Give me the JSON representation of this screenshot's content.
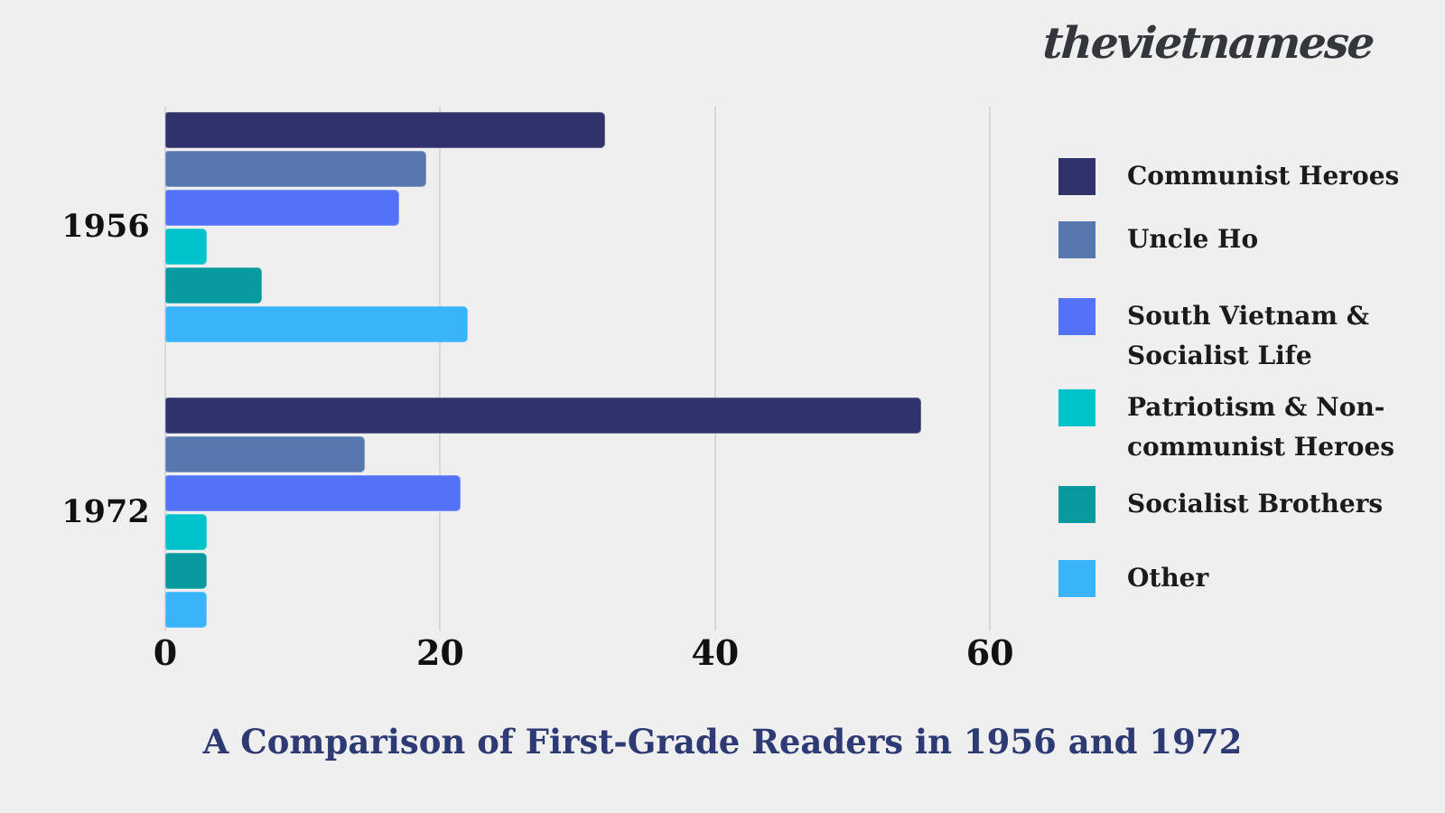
{
  "page": {
    "background": "#EFEFF0"
  },
  "header": {
    "logo_text": "thevietnamese",
    "logo_color": "#33363C"
  },
  "chart_data": {
    "type": "bar",
    "orientation": "horizontal",
    "title": "A Comparison of First-Grade Readers in 1956 and 1972",
    "title_color": "#2D3A73",
    "categories": [
      "1956",
      "1972"
    ],
    "series": [
      {
        "name": "Communist Heroes",
        "color": "#30336B",
        "values": [
          32,
          55
        ]
      },
      {
        "name": "Uncle Ho",
        "color": "#5777AE",
        "values": [
          19,
          14.5
        ]
      },
      {
        "name": "South Vietnam & Socialist Life",
        "color": "#5472F8",
        "values": [
          17,
          21.5
        ]
      },
      {
        "name": "Patriotism & Non-communist Heroes",
        "color": "#00C2CB",
        "values": [
          3,
          3
        ]
      },
      {
        "name": "Socialist Brothers",
        "color": "#089A9E",
        "values": [
          7,
          3
        ]
      },
      {
        "name": "Other",
        "color": "#39B4FA",
        "values": [
          22,
          3
        ]
      }
    ],
    "legend": [
      {
        "series": "Communist Heroes",
        "lines": [
          "Communist Heroes"
        ]
      },
      {
        "series": "Uncle Ho",
        "lines": [
          "Uncle Ho"
        ]
      },
      {
        "series": "South Vietnam & Socialist Life",
        "lines": [
          "South Vietnam &",
          "Socialist Life"
        ]
      },
      {
        "series": "Patriotism & Non-communist Heroes",
        "lines": [
          "Patriotism & Non-",
          "communist Heroes"
        ]
      },
      {
        "series": "Socialist Brothers",
        "lines": [
          "Socialist Brothers"
        ]
      },
      {
        "series": "Other",
        "lines": [
          "Other"
        ]
      }
    ],
    "legend_position": "right",
    "grid": true,
    "x_axis": {
      "tick_labels": [
        "0",
        "20",
        "40",
        "60"
      ],
      "tick_values": [
        0,
        20,
        40,
        60
      ],
      "min": 0,
      "max": 63
    }
  }
}
